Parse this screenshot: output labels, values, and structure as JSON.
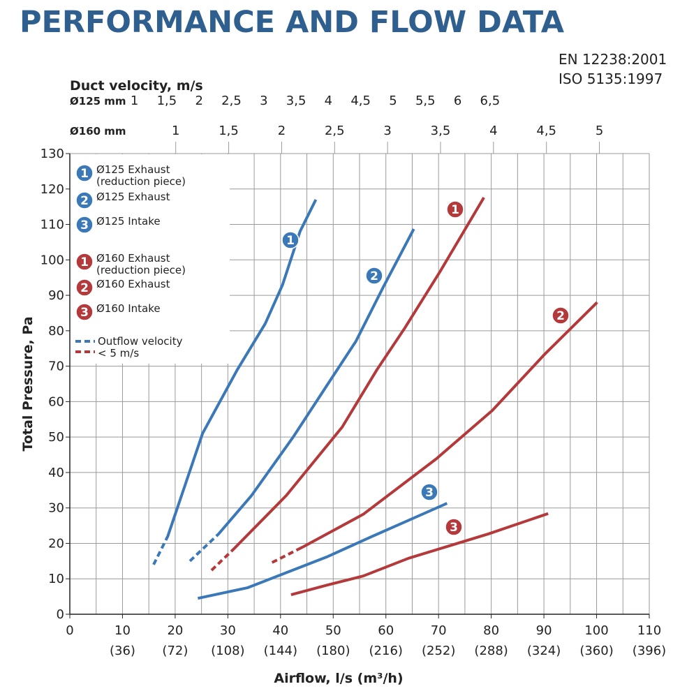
{
  "chart_data": {
    "type": "line",
    "title": "PERFORMANCE AND FLOW DATA",
    "standards": [
      "EN 12238:2001",
      "ISO 5135:1997"
    ],
    "xlabel": "Airflow, l/s (m³/h)",
    "ylabel": "Total Pressure, Pa",
    "xlim": [
      0,
      110
    ],
    "ylim": [
      0,
      130
    ],
    "xticks": [
      0,
      10,
      20,
      30,
      40,
      50,
      60,
      70,
      80,
      90,
      100,
      110
    ],
    "xtick_sublabels": [
      null,
      "(36)",
      "(72)",
      "(108)",
      "(144)",
      "(180)",
      "(216)",
      "(252)",
      "(288)",
      "(324)",
      "(360)",
      "(396)"
    ],
    "xminor": [
      5,
      15,
      25,
      35,
      45,
      55,
      65,
      75,
      85,
      95,
      105
    ],
    "yticks": [
      0,
      10,
      20,
      30,
      40,
      50,
      60,
      70,
      80,
      90,
      100,
      110,
      120,
      130
    ],
    "grid": true,
    "top_axis": {
      "title": "Duct velocity, m/s",
      "scales": [
        {
          "label": "Ø125 mm",
          "diameter_mm": 125,
          "ticks": [
            1,
            {
              "value": 1.5,
              "label": "1,5"
            },
            2,
            {
              "value": 2.5,
              "label": "2,5"
            },
            3,
            {
              "value": 3.5,
              "label": "3,5"
            },
            4,
            {
              "value": 4.5,
              "label": "4,5"
            },
            5,
            {
              "value": 5.5,
              "label": "5,5"
            },
            6,
            {
              "value": 6.5,
              "label": "6,5"
            }
          ]
        },
        {
          "label": "Ø160 mm",
          "diameter_mm": 160,
          "ticks": [
            1,
            {
              "value": 1.5,
              "label": "1,5"
            },
            2,
            {
              "value": 2.5,
              "label": "2,5"
            },
            3,
            {
              "value": 3.5,
              "label": "3,5"
            },
            4,
            {
              "value": 4.5,
              "label": "4,5"
            },
            5
          ]
        }
      ]
    },
    "series": [
      {
        "name": "Ø125 Exhaust (reduction piece)",
        "badge": "1",
        "color": "#3b78b8",
        "dashed_until": 1,
        "x": [
          15.9,
          18.6,
          25.2,
          31.8,
          37.1,
          40.4,
          43.7,
          46.7
        ],
        "values": [
          14,
          22,
          51,
          69,
          82,
          93,
          108,
          117
        ]
      },
      {
        "name": "Ø125 Exhaust",
        "badge": "2",
        "color": "#3b78b8",
        "dashed_until": 1,
        "x": [
          22.8,
          28.2,
          34.5,
          42.4,
          49,
          54.3,
          59.6,
          65.3
        ],
        "values": [
          15,
          22.6,
          33.5,
          50,
          65,
          77,
          92.6,
          108.7
        ]
      },
      {
        "name": "Ø125 Intake",
        "badge": "3",
        "color": "#3b78b8",
        "dashed_until": 0,
        "x": [
          24.3,
          33.8,
          49,
          57,
          71.6
        ],
        "values": [
          4.5,
          7.5,
          16.3,
          21.7,
          31.3
        ]
      },
      {
        "name": "Ø160 Exhaust (reduction piece)",
        "badge": "1",
        "color": "#b3393b",
        "dashed_until": 1,
        "x": [
          26.9,
          30.9,
          41.1,
          51.7,
          58.3,
          63.6,
          70.2,
          78.6
        ],
        "values": [
          12.4,
          18.1,
          33.5,
          52.8,
          69,
          80.8,
          96.5,
          117.6
        ]
      },
      {
        "name": "Ø160 Exhaust",
        "badge": "2",
        "color": "#b3393b",
        "dashed_until": 1,
        "x": [
          38.4,
          44.4,
          55.7,
          69.6,
          80.2,
          90.1,
          100.1
        ],
        "values": [
          14.6,
          19.1,
          28.2,
          43.9,
          57.5,
          73.3,
          88
        ]
      },
      {
        "name": "Ø160 Intake",
        "badge": "3",
        "color": "#b3393b",
        "dashed_until": 0,
        "x": [
          42,
          49,
          55.7,
          64.3,
          79.5,
          90.8
        ],
        "values": [
          5.5,
          8.3,
          10.8,
          15.8,
          22.7,
          28.4
        ]
      }
    ],
    "dash_legend": {
      "label": "Outflow velocity < 5 m/s",
      "colors": [
        "#3b78b8",
        "#b3393b"
      ]
    }
  }
}
